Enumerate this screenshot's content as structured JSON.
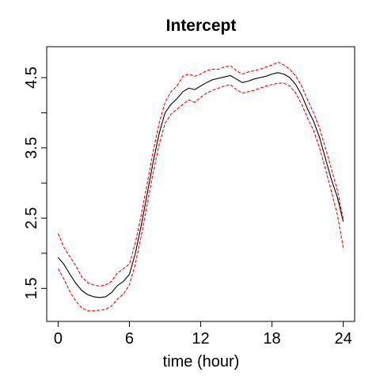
{
  "chart_data": {
    "type": "line",
    "title": "Intercept",
    "xlabel": "time (hour)",
    "ylabel": "",
    "xlim": [
      -0.96,
      24.96
    ],
    "ylim": [
      1.03,
      4.94
    ],
    "x_ticks": [
      0,
      6,
      12,
      18,
      24
    ],
    "x_tick_labels": [
      "0",
      "6",
      "12",
      "18",
      "24"
    ],
    "y_ticks": [
      1.5,
      2.0,
      2.5,
      3.0,
      3.5,
      4.0,
      4.5
    ],
    "y_tick_labels": [
      "1.5",
      "",
      "2.5",
      "",
      "3.5",
      "",
      "4.5"
    ],
    "grid": false,
    "colors": {
      "estimate": "#000000",
      "band": "#ff0000"
    },
    "series": [
      {
        "style": "solid",
        "x": [
          0,
          0.5,
          1,
          1.5,
          2,
          2.5,
          3,
          3.5,
          4,
          4.5,
          5,
          5.5,
          6,
          6.5,
          7,
          7.5,
          8,
          8.5,
          9,
          9.5,
          10,
          10.5,
          11,
          11.5,
          12,
          12.5,
          13,
          13.5,
          14,
          14.5,
          15,
          15.5,
          16,
          16.5,
          17,
          17.5,
          18,
          18.5,
          19,
          19.5,
          20,
          20.5,
          21,
          21.5,
          22,
          22.5,
          23,
          23.5,
          24
        ],
        "values": [
          1.94,
          1.84,
          1.7,
          1.57,
          1.47,
          1.41,
          1.38,
          1.37,
          1.38,
          1.44,
          1.54,
          1.6,
          1.7,
          2.0,
          2.4,
          2.85,
          3.3,
          3.7,
          4.0,
          4.12,
          4.2,
          4.3,
          4.35,
          4.33,
          4.38,
          4.43,
          4.47,
          4.49,
          4.51,
          4.53,
          4.48,
          4.43,
          4.45,
          4.48,
          4.5,
          4.52,
          4.55,
          4.57,
          4.55,
          4.5,
          4.4,
          4.25,
          4.05,
          3.88,
          3.65,
          3.35,
          3.05,
          2.8,
          2.45
        ]
      },
      {
        "style": "dashed",
        "x": [
          0,
          0.5,
          1,
          1.5,
          2,
          2.5,
          3,
          3.5,
          4,
          4.5,
          5,
          5.5,
          6,
          6.5,
          7,
          7.5,
          8,
          8.5,
          9,
          9.5,
          10,
          10.5,
          11,
          11.5,
          12,
          12.5,
          13,
          13.5,
          14,
          14.5,
          15,
          15.5,
          16,
          16.5,
          17,
          17.5,
          18,
          18.5,
          19,
          19.5,
          20,
          20.5,
          21,
          21.5,
          22,
          22.5,
          23,
          23.5,
          24
        ],
        "values": [
          2.28,
          2.08,
          1.95,
          1.82,
          1.66,
          1.58,
          1.55,
          1.53,
          1.55,
          1.6,
          1.72,
          1.78,
          1.85,
          2.15,
          2.55,
          3.0,
          3.45,
          3.85,
          4.15,
          4.3,
          4.38,
          4.52,
          4.55,
          4.52,
          4.55,
          4.6,
          4.62,
          4.62,
          4.65,
          4.67,
          4.6,
          4.55,
          4.58,
          4.6,
          4.62,
          4.65,
          4.68,
          4.72,
          4.68,
          4.62,
          4.52,
          4.38,
          4.18,
          4.0,
          3.78,
          3.5,
          3.2,
          2.9,
          2.48
        ]
      },
      {
        "style": "dashed",
        "x": [
          0,
          0.5,
          1,
          1.5,
          2,
          2.5,
          3,
          3.5,
          4,
          4.5,
          5,
          5.5,
          6,
          6.5,
          7,
          7.5,
          8,
          8.5,
          9,
          9.5,
          10,
          10.5,
          11,
          11.5,
          12,
          12.5,
          13,
          13.5,
          14,
          14.5,
          15,
          15.5,
          16,
          16.5,
          17,
          17.5,
          18,
          18.5,
          19,
          19.5,
          20,
          20.5,
          21,
          21.5,
          22,
          22.5,
          23,
          23.5,
          24
        ],
        "values": [
          1.78,
          1.63,
          1.45,
          1.32,
          1.22,
          1.18,
          1.18,
          1.19,
          1.2,
          1.25,
          1.35,
          1.42,
          1.55,
          1.85,
          2.25,
          2.7,
          3.15,
          3.55,
          3.85,
          3.98,
          4.05,
          4.12,
          4.18,
          4.15,
          4.22,
          4.28,
          4.32,
          4.35,
          4.38,
          4.4,
          4.33,
          4.28,
          4.3,
          4.32,
          4.35,
          4.38,
          4.4,
          4.42,
          4.42,
          4.38,
          4.28,
          4.12,
          3.92,
          3.75,
          3.5,
          3.2,
          2.88,
          2.55,
          2.08
        ]
      }
    ]
  }
}
